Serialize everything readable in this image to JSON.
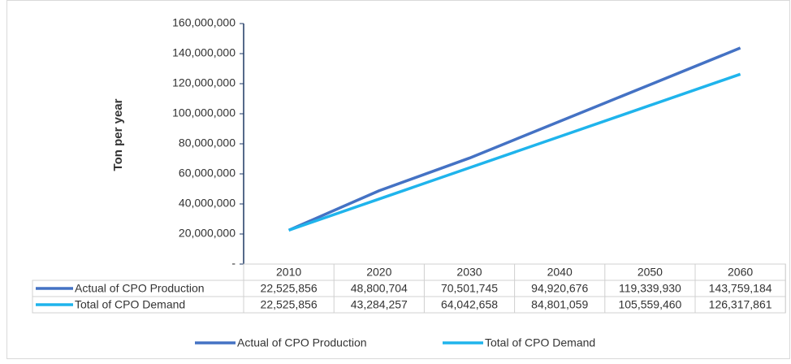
{
  "chart_data": {
    "type": "line",
    "y_label": "Ton per year",
    "categories": [
      "2010",
      "2020",
      "2030",
      "2040",
      "2050",
      "2060"
    ],
    "series": [
      {
        "name": "Actual of CPO Production",
        "color": "#4472c4",
        "values": [
          22525856,
          48800704,
          70501745,
          94920676,
          119339930,
          143759184
        ],
        "value_labels": [
          "22,525,856",
          "48,800,704",
          "70,501,745",
          "94,920,676",
          "119,339,930",
          "143,759,184"
        ]
      },
      {
        "name": "Total of CPO Demand",
        "color": "#1fb4ec",
        "values": [
          22525856,
          43284257,
          64042658,
          84801059,
          105559460,
          126317861
        ],
        "value_labels": [
          "22,525,856",
          "43,284,257",
          "64,042,658",
          "84,801,059",
          "105,559,460",
          "126,317,861"
        ]
      }
    ],
    "ylim": [
      0,
      160000000
    ],
    "yticks": [
      {
        "value": 0,
        "label": "-"
      },
      {
        "value": 20000000,
        "label": "20,000,000"
      },
      {
        "value": 40000000,
        "label": "40,000,000"
      },
      {
        "value": 60000000,
        "label": "60,000,000"
      },
      {
        "value": 80000000,
        "label": "80,000,000"
      },
      {
        "value": 100000000,
        "label": "100,000,000"
      },
      {
        "value": 120000000,
        "label": "120,000,000"
      },
      {
        "value": 140000000,
        "label": "140,000,000"
      },
      {
        "value": 160000000,
        "label": "160,000,000"
      }
    ],
    "grid": false,
    "legend": "bottom"
  }
}
